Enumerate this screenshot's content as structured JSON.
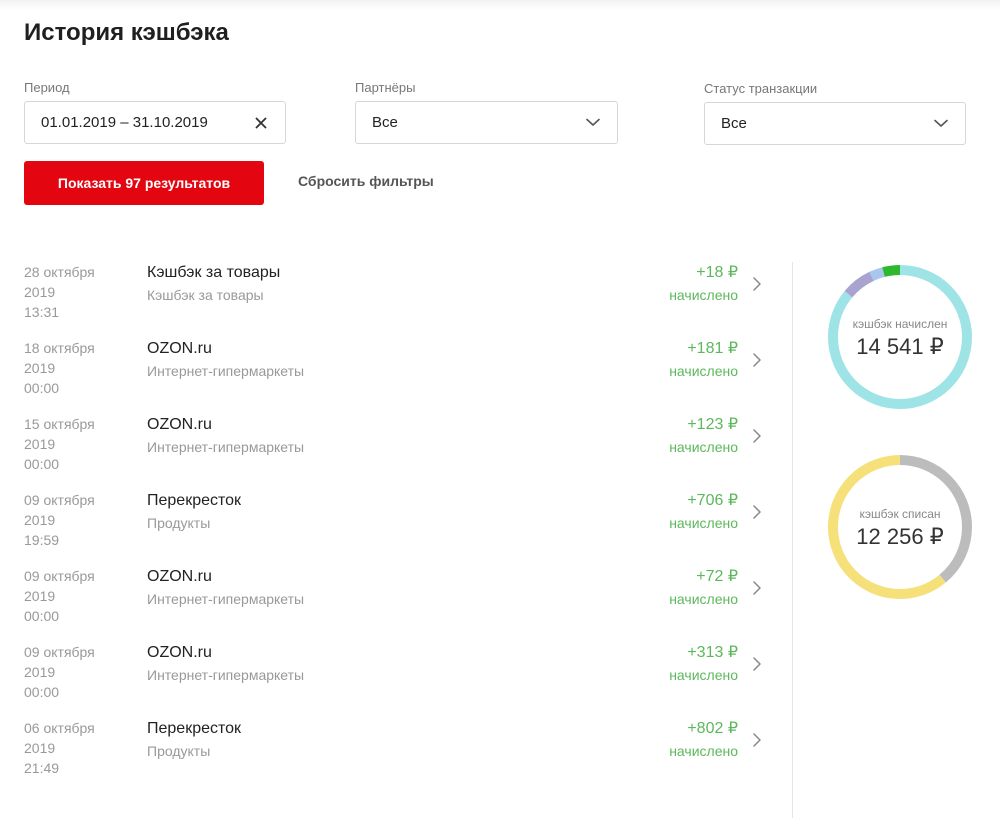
{
  "title": "История кэшбэка",
  "filters": {
    "period": {
      "label": "Период",
      "value": "01.01.2019 – 31.10.2019"
    },
    "partners": {
      "label": "Партнёры",
      "value": "Все"
    },
    "status": {
      "label": "Статус транзакции",
      "value": "Все"
    }
  },
  "actions": {
    "show_label": "Показать 97 результатов",
    "reset_label": "Сбросить фильтры"
  },
  "colors": {
    "accent": "#e30611",
    "positive": "#5cb85c"
  },
  "transactions": [
    {
      "date": "28 октября",
      "year": "2019",
      "time": "13:31",
      "name": "Кэшбэк за товары",
      "category": "Кэшбэк за товары",
      "amount": "+18 ₽",
      "status": "начислено"
    },
    {
      "date": "18 октября",
      "year": "2019",
      "time": "00:00",
      "name": "OZON.ru",
      "category": "Интернет-гипермаркеты",
      "amount": "+181 ₽",
      "status": "начислено"
    },
    {
      "date": "15 октября",
      "year": "2019",
      "time": "00:00",
      "name": "OZON.ru",
      "category": "Интернет-гипермаркеты",
      "amount": "+123 ₽",
      "status": "начислено"
    },
    {
      "date": "09 октября",
      "year": "2019",
      "time": "19:59",
      "name": "Перекресток",
      "category": "Продукты",
      "amount": "+706 ₽",
      "status": "начислено"
    },
    {
      "date": "09 октября",
      "year": "2019",
      "time": "00:00",
      "name": "OZON.ru",
      "category": "Интернет-гипермаркеты",
      "amount": "+72 ₽",
      "status": "начислено"
    },
    {
      "date": "09 октября",
      "year": "2019",
      "time": "00:00",
      "name": "OZON.ru",
      "category": "Интернет-гипермаркеты",
      "amount": "+313 ₽",
      "status": "начислено"
    },
    {
      "date": "06 октября",
      "year": "2019",
      "time": "21:49",
      "name": "Перекресток",
      "category": "Продукты",
      "amount": "+802 ₽",
      "status": "начислено"
    }
  ],
  "summary": {
    "accrued": {
      "label": "кэшбэк начислен",
      "value": "14 541 ₽"
    },
    "spent": {
      "label": "кэшбэк списан",
      "value": "12 256 ₽"
    }
  },
  "chart_data": [
    {
      "type": "pie",
      "series": [
        {
          "share": 0.86,
          "color": "#9ee3e6"
        },
        {
          "share": 0.07,
          "color": "#a9a3d0"
        },
        {
          "share": 0.03,
          "color": "#a9c6ee"
        },
        {
          "share": 0.04,
          "color": "#2eb82e"
        }
      ]
    },
    {
      "type": "pie",
      "series": [
        {
          "share": 0.39,
          "color": "#bcbcbc"
        },
        {
          "share": 0.61,
          "color": "#f5e07a"
        }
      ]
    }
  ]
}
